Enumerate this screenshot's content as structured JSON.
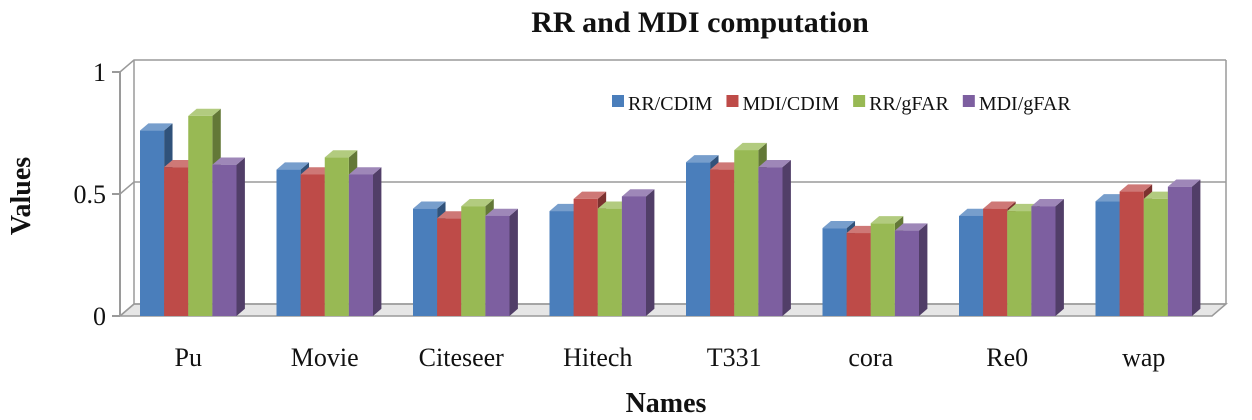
{
  "chart_data": {
    "type": "bar",
    "title": "RR and MDI computation",
    "xlabel": "Names",
    "ylabel": "Values",
    "ylim": [
      0,
      1
    ],
    "yticks": [
      "0",
      "0.5",
      "1"
    ],
    "categories": [
      "Pu",
      "Movie",
      "Citeseer",
      "Hitech",
      "T331",
      "cora",
      "Re0",
      "wap"
    ],
    "series": [
      {
        "name": "RR/CDIM",
        "color": "#4a7ebb",
        "values": [
          0.76,
          0.6,
          0.44,
          0.43,
          0.63,
          0.36,
          0.41,
          0.47
        ]
      },
      {
        "name": "MDI/CDIM",
        "color": "#be4b48",
        "values": [
          0.61,
          0.58,
          0.4,
          0.48,
          0.6,
          0.34,
          0.44,
          0.51
        ]
      },
      {
        "name": "RR/gFAR",
        "color": "#98b954",
        "values": [
          0.82,
          0.65,
          0.45,
          0.44,
          0.68,
          0.38,
          0.43,
          0.48
        ]
      },
      {
        "name": "MDI/gFAR",
        "color": "#7d5fa0",
        "values": [
          0.62,
          0.58,
          0.41,
          0.49,
          0.61,
          0.35,
          0.45,
          0.53
        ]
      }
    ],
    "legend": "top-right",
    "grid": true,
    "style": "3d-clustered-column"
  }
}
